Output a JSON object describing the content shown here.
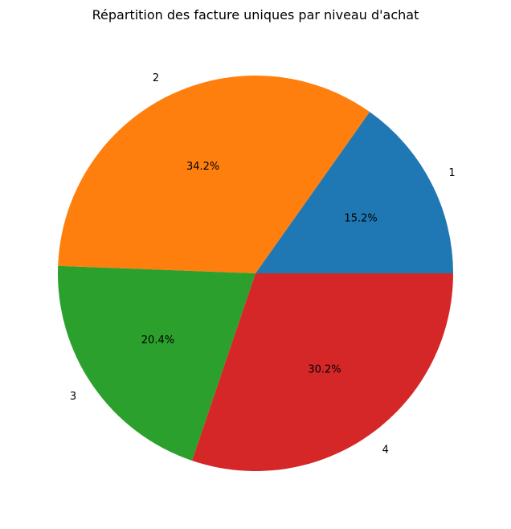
{
  "chart_data": {
    "type": "pie",
    "title": "Répartition des facture uniques par niveau d'achat",
    "categories": [
      "1",
      "2",
      "3",
      "4"
    ],
    "values": [
      15.2,
      34.2,
      20.4,
      30.2
    ],
    "percent_labels": [
      "15.2%",
      "34.2%",
      "20.4%",
      "30.2%"
    ],
    "colors": [
      "#1f77b4",
      "#ff7f0e",
      "#2ca02c",
      "#d62728"
    ],
    "start_angle_deg": 0,
    "direction": "counterclockwise",
    "legend": false
  }
}
